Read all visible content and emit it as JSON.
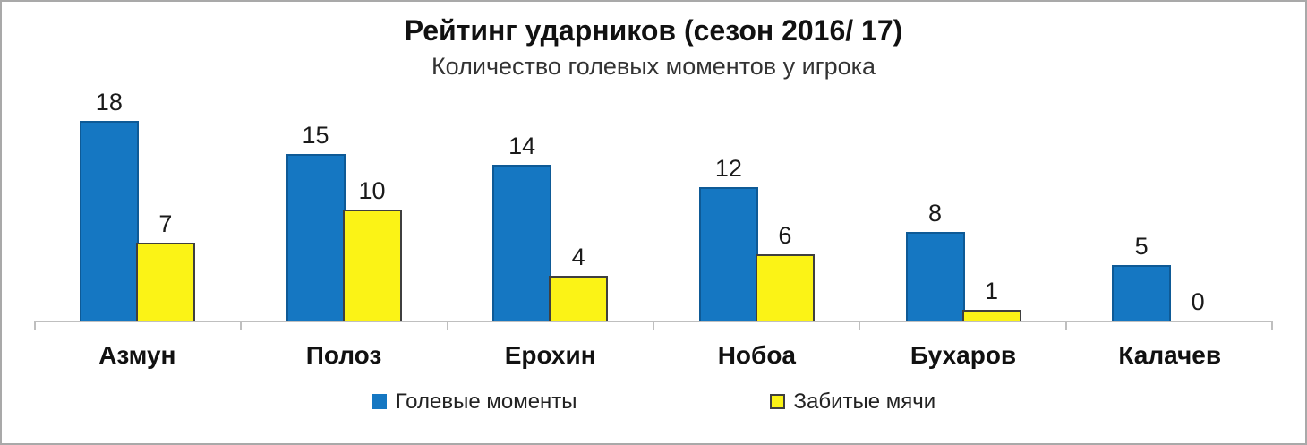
{
  "chart_data": {
    "type": "bar",
    "title": "Рейтинг ударников (сезон 2016/ 17)",
    "subtitle": "Количество голевых моментов у игрока",
    "categories": [
      "Азмун",
      "Полоз",
      "Ерохин",
      "Нобоа",
      "Бухаров",
      "Калачев"
    ],
    "series": [
      {
        "name": "Голевые моменты",
        "values": [
          18,
          15,
          14,
          12,
          8,
          5
        ],
        "color": "#1577c2",
        "border_color": "#0e5a96"
      },
      {
        "name": "Забитые мячи",
        "values": [
          7,
          10,
          4,
          6,
          1,
          0
        ],
        "color": "#fbf316",
        "border_color": "#3f3f3f"
      }
    ],
    "ylim": [
      0,
      18
    ],
    "grid": false,
    "legend_position": "bottom",
    "value_labels": true
  },
  "colors": {
    "frame_border": "#a9a9a9",
    "axis": "#bfbfbf",
    "text": "#1a1a1a"
  }
}
